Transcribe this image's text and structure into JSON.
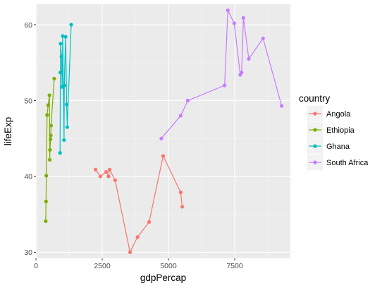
{
  "chart_data": {
    "type": "line",
    "xlabel": "gdpPercap",
    "ylabel": "lifeExp",
    "xlim": [
      0,
      9600
    ],
    "ylim": [
      29.2,
      62.7
    ],
    "x_ticks": [
      {
        "value": 0,
        "label": "0"
      },
      {
        "value": 2500,
        "label": "2500"
      },
      {
        "value": 5000,
        "label": "5000"
      },
      {
        "value": 7500,
        "label": "7500"
      }
    ],
    "y_ticks": [
      {
        "value": 30,
        "label": "30"
      },
      {
        "value": 40,
        "label": "40"
      },
      {
        "value": 50,
        "label": "50"
      },
      {
        "value": 60,
        "label": "60"
      }
    ],
    "grid": true,
    "legend": {
      "title": "country",
      "placement": "right"
    },
    "series": [
      {
        "name": "Angola",
        "color": "#F8766D",
        "x": [
          2250,
          2430,
          2650,
          2740,
          2780,
          2990,
          3550,
          3830,
          4270,
          4800,
          5460,
          5520
        ],
        "y": [
          40.9,
          40.0,
          40.6,
          40.0,
          40.9,
          39.5,
          30.0,
          32.0,
          34.0,
          42.7,
          37.9,
          36.0
        ]
      },
      {
        "name": "Ethiopia",
        "color": "#7CAE00",
        "x": [
          370,
          380,
          390,
          420,
          460,
          510,
          520,
          530,
          550,
          560,
          570,
          690
        ],
        "y": [
          34.1,
          36.7,
          40.1,
          48.1,
          49.4,
          50.7,
          42.2,
          43.5,
          44.9,
          45.4,
          46.7,
          52.9
        ]
      },
      {
        "name": "Ghana",
        "color": "#00BFC4",
        "x": [
          910,
          920,
          930,
          960,
          990,
          1010,
          1060,
          1070,
          1120,
          1160,
          1180,
          1330
        ],
        "y": [
          43.1,
          53.7,
          57.5,
          55.8,
          51.8,
          58.5,
          44.8,
          52.0,
          58.4,
          49.5,
          46.5,
          60.0
        ]
      },
      {
        "name": "South Africa",
        "color": "#C77CFF",
        "x": [
          4730,
          5460,
          5730,
          7120,
          7240,
          7480,
          7710,
          7760,
          7830,
          8030,
          8570,
          9270
        ],
        "y": [
          45.0,
          48.0,
          50.0,
          52.0,
          61.9,
          60.2,
          53.4,
          53.7,
          60.9,
          55.5,
          58.2,
          49.3
        ]
      }
    ]
  }
}
